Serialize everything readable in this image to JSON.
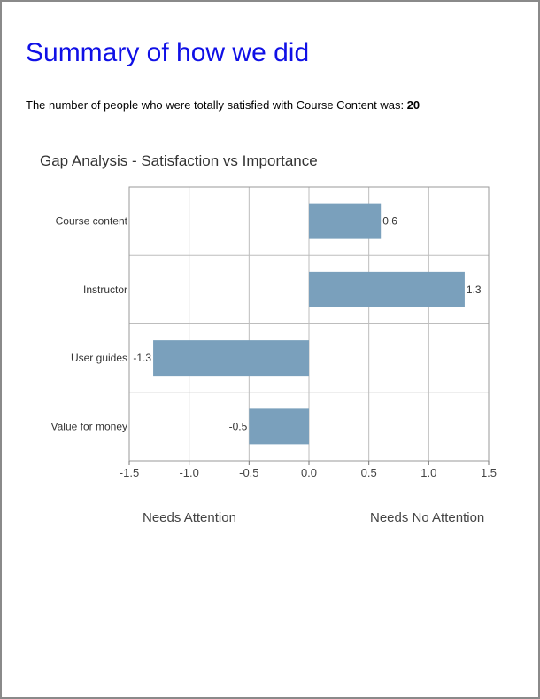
{
  "page": {
    "title": "Summary of how we did",
    "summary_text": "The number of people who were totally satisfied with Course Content was:",
    "summary_value": "20"
  },
  "chart_data": {
    "type": "bar",
    "orientation": "horizontal",
    "title": "Gap Analysis - Satisfaction vs Importance",
    "categories": [
      "Course content",
      "Instructor",
      "User guides",
      "Value for money"
    ],
    "values": [
      0.6,
      1.3,
      -1.3,
      -0.5
    ],
    "data_labels": [
      "0.6",
      "1.3",
      "-1.3",
      "-0.5"
    ],
    "xlim": [
      -1.5,
      1.5
    ],
    "x_ticks": [
      -1.5,
      -1.0,
      -0.5,
      0.0,
      0.5,
      1.0,
      1.5
    ],
    "x_tick_labels": [
      "-1.5",
      "-1.0",
      "-0.5",
      "0.0",
      "0.5",
      "1.0",
      "1.5"
    ],
    "grid": true,
    "bar_color": "#7aa0bc",
    "annotations": {
      "left": "Needs Attention",
      "right": "Needs No Attention"
    }
  }
}
